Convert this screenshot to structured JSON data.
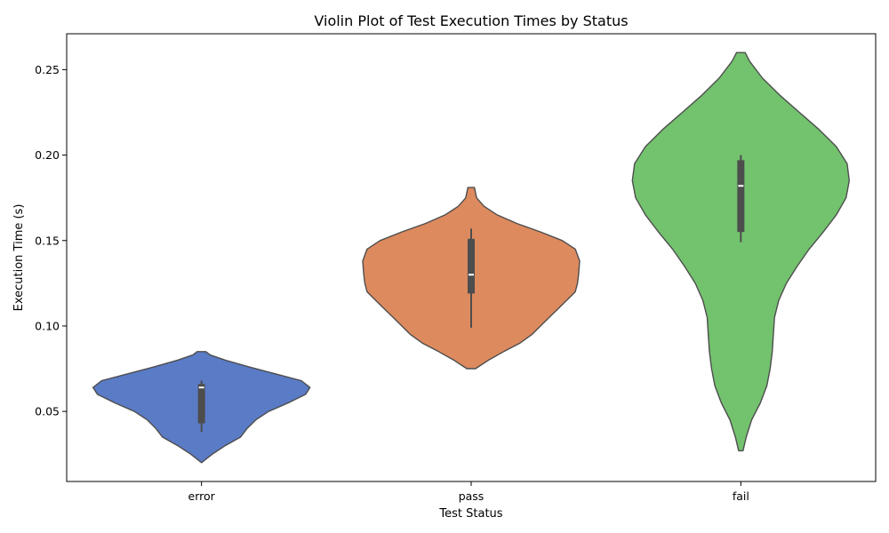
{
  "chart_data": {
    "type": "violin",
    "title": "Violin Plot of Test Execution Times by Status",
    "xlabel": "Test Status",
    "ylabel": "Execution Time (s)",
    "ylim": [
      0.009,
      0.271
    ],
    "yticks": [
      0.05,
      0.1,
      0.15,
      0.2,
      0.25
    ],
    "ytick_labels": [
      "0.05",
      "0.10",
      "0.15",
      "0.20",
      "0.25"
    ],
    "grid": false,
    "categories": [
      "error",
      "pass",
      "fail"
    ],
    "series": [
      {
        "category": "error",
        "color": "#5a7bc6",
        "min": 0.038,
        "q1": 0.043,
        "median": 0.064,
        "q3": 0.066,
        "max": 0.068,
        "density": [
          [
            0.02,
            0.0
          ],
          [
            0.025,
            0.1
          ],
          [
            0.03,
            0.22
          ],
          [
            0.035,
            0.36
          ],
          [
            0.04,
            0.42
          ],
          [
            0.045,
            0.5
          ],
          [
            0.05,
            0.62
          ],
          [
            0.055,
            0.8
          ],
          [
            0.06,
            0.96
          ],
          [
            0.064,
            1.0
          ],
          [
            0.068,
            0.92
          ],
          [
            0.072,
            0.68
          ],
          [
            0.076,
            0.44
          ],
          [
            0.08,
            0.22
          ],
          [
            0.083,
            0.08
          ],
          [
            0.085,
            0.04
          ]
        ]
      },
      {
        "category": "pass",
        "color": "#dd8a5f",
        "min": 0.099,
        "q1": 0.119,
        "median": 0.13,
        "q3": 0.151,
        "max": 0.157,
        "density": [
          [
            0.075,
            0.04
          ],
          [
            0.08,
            0.16
          ],
          [
            0.085,
            0.3
          ],
          [
            0.09,
            0.45
          ],
          [
            0.095,
            0.56
          ],
          [
            0.1,
            0.64
          ],
          [
            0.105,
            0.72
          ],
          [
            0.11,
            0.8
          ],
          [
            0.115,
            0.88
          ],
          [
            0.12,
            0.96
          ],
          [
            0.125,
            0.98
          ],
          [
            0.13,
            0.99
          ],
          [
            0.138,
            1.0
          ],
          [
            0.145,
            0.96
          ],
          [
            0.15,
            0.84
          ],
          [
            0.155,
            0.64
          ],
          [
            0.16,
            0.42
          ],
          [
            0.165,
            0.24
          ],
          [
            0.17,
            0.12
          ],
          [
            0.175,
            0.05
          ],
          [
            0.181,
            0.03
          ]
        ]
      },
      {
        "category": "fail",
        "color": "#73c26e",
        "min": 0.149,
        "q1": 0.155,
        "median": 0.182,
        "q3": 0.197,
        "max": 0.2,
        "density": [
          [
            0.027,
            0.02
          ],
          [
            0.035,
            0.05
          ],
          [
            0.045,
            0.1
          ],
          [
            0.055,
            0.18
          ],
          [
            0.065,
            0.24
          ],
          [
            0.075,
            0.27
          ],
          [
            0.085,
            0.29
          ],
          [
            0.095,
            0.3
          ],
          [
            0.105,
            0.31
          ],
          [
            0.115,
            0.35
          ],
          [
            0.125,
            0.42
          ],
          [
            0.135,
            0.52
          ],
          [
            0.145,
            0.63
          ],
          [
            0.155,
            0.76
          ],
          [
            0.165,
            0.88
          ],
          [
            0.175,
            0.97
          ],
          [
            0.185,
            1.0
          ],
          [
            0.195,
            0.98
          ],
          [
            0.205,
            0.88
          ],
          [
            0.215,
            0.72
          ],
          [
            0.225,
            0.54
          ],
          [
            0.235,
            0.36
          ],
          [
            0.245,
            0.2
          ],
          [
            0.255,
            0.08
          ],
          [
            0.26,
            0.04
          ]
        ]
      }
    ]
  }
}
